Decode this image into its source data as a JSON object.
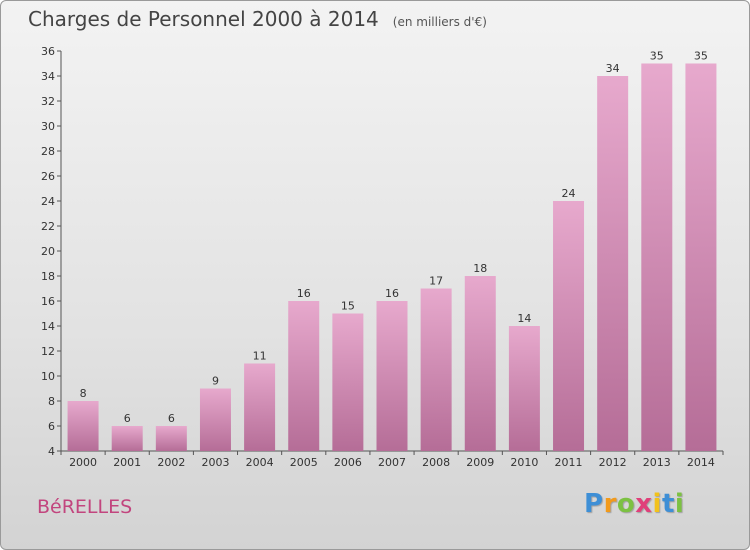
{
  "header": {
    "title": "Charges de Personnel 2000 à 2014",
    "subtitle": "(en milliers d'€)"
  },
  "footer": {
    "commune": "BéRELLES",
    "logo": "Proxiti"
  },
  "colors": {
    "bar_light": "#e7a9cd",
    "bar_dark": "#b56d97",
    "commune_text": "#c2457e"
  },
  "chart_data": {
    "type": "bar",
    "title": "Charges de Personnel 2000 à 2014",
    "subtitle": "(en milliers d'€)",
    "xlabel": "",
    "ylabel": "",
    "categories": [
      "2000",
      "2001",
      "2002",
      "2003",
      "2004",
      "2005",
      "2006",
      "2007",
      "2008",
      "2009",
      "2010",
      "2011",
      "2012",
      "2013",
      "2014"
    ],
    "values": [
      8,
      6,
      6,
      9,
      11,
      16,
      15,
      16,
      17,
      18,
      14,
      24,
      34,
      35,
      35
    ],
    "ylim": [
      4,
      36
    ],
    "yticks": [
      4,
      6,
      8,
      10,
      12,
      14,
      16,
      18,
      20,
      22,
      24,
      26,
      28,
      30,
      32,
      34,
      36
    ],
    "grid": false,
    "data_labels": true
  }
}
